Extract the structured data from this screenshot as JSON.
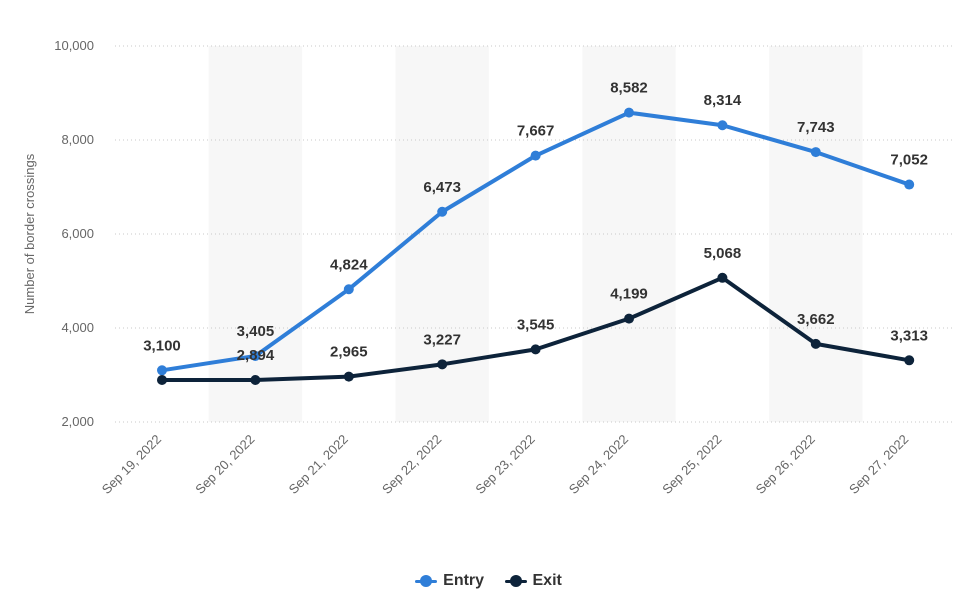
{
  "chart_data": {
    "type": "line",
    "categories": [
      "Sep 19, 2022",
      "Sep 20, 2022",
      "Sep 21, 2022",
      "Sep 22, 2022",
      "Sep 23, 2022",
      "Sep 24, 2022",
      "Sep 25, 2022",
      "Sep 26, 2022",
      "Sep 27, 2022"
    ],
    "series": [
      {
        "name": "Entry",
        "color": "#2f7ed8",
        "values": [
          3100,
          3405,
          4824,
          6473,
          7667,
          8582,
          8314,
          7743,
          7052
        ]
      },
      {
        "name": "Exit",
        "color": "#0d233a",
        "values": [
          2894,
          2894,
          2965,
          3227,
          3545,
          4199,
          5068,
          3662,
          3313
        ]
      }
    ],
    "data_labels": {
      "Entry": [
        "3,100",
        "3,405",
        "4,824",
        "6,473",
        "7,667",
        "8,582",
        "8,314",
        "7,743",
        "7,052"
      ],
      "Exit": [
        "",
        "2,894",
        "2,965",
        "3,227",
        "3,545",
        "4,199",
        "5,068",
        "3,662",
        "3,313"
      ]
    },
    "title": "",
    "xlabel": "",
    "ylabel": "Number of border crossings",
    "ylim": [
      2000,
      10000
    ],
    "yticks": [
      2000,
      4000,
      6000,
      8000,
      10000
    ],
    "ytick_labels": [
      "2,000",
      "4,000",
      "6,000",
      "8,000",
      "10,000"
    ],
    "grid": true,
    "legend_position": "bottom-center"
  }
}
